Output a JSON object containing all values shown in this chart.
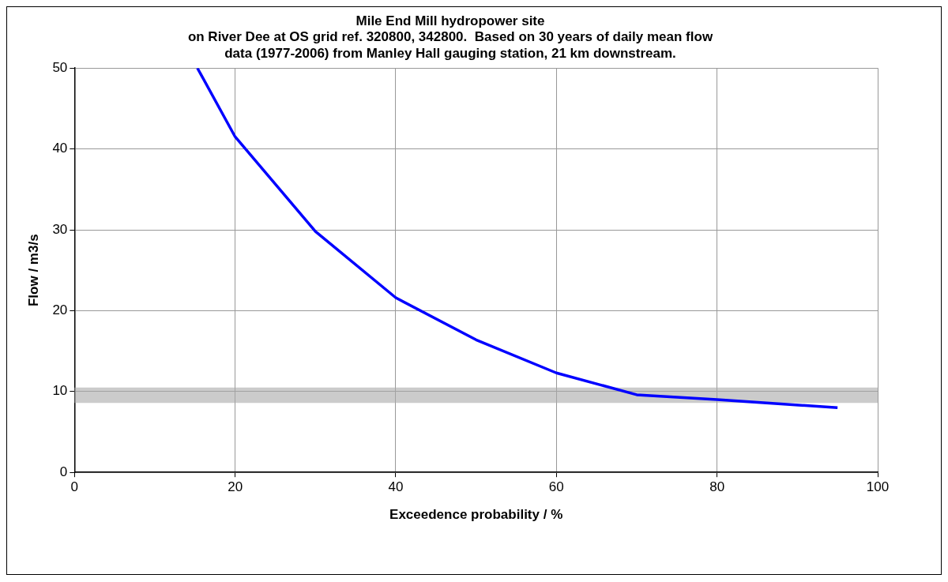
{
  "chart_data": {
    "type": "line",
    "title": [
      "Mile End Mill hydropower site",
      "on River Dee at OS grid ref. 320800, 342800.  Based on 30 years of daily mean flow",
      "data (1977-2006) from Manley Hall gauging station, 21 km downstream."
    ],
    "xlabel": "Exceedence probability / %",
    "ylabel": "Flow / m3/s",
    "series": [
      {
        "color": "#0000ff",
        "x": [
          15.3,
          20,
          30,
          40,
          50,
          60,
          70,
          80,
          95
        ],
        "values": [
          50,
          41.5,
          29.8,
          21.6,
          16.4,
          12.3,
          9.6,
          9.0,
          8.0
        ]
      }
    ],
    "bands": [
      {
        "axis": "y",
        "from": 8.6,
        "to": 10.5,
        "color": "#a8a8a8"
      }
    ],
    "xlim": [
      0,
      100
    ],
    "xticks": [
      0,
      20,
      40,
      60,
      80,
      100
    ],
    "ylim": [
      0,
      50
    ],
    "yticks": [
      0,
      10,
      20,
      30,
      40,
      50
    ],
    "grid": true,
    "legend": false,
    "marker": "none",
    "line_style": "solid"
  }
}
